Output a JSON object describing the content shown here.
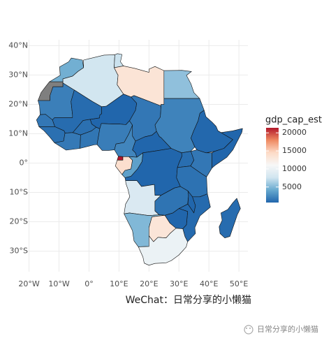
{
  "chart_data": {
    "type": "map",
    "xlim": [
      -22,
      53
    ],
    "ylim": [
      -37,
      42
    ],
    "xticks": [
      {
        "value": -20,
        "label": "20°W"
      },
      {
        "value": -10,
        "label": "10°W"
      },
      {
        "value": 0,
        "label": "0°"
      },
      {
        "value": 10,
        "label": "10°E"
      },
      {
        "value": 20,
        "label": "20°E"
      },
      {
        "value": 30,
        "label": "30°E"
      },
      {
        "value": 40,
        "label": "40°E"
      },
      {
        "value": 50,
        "label": "50°E"
      }
    ],
    "yticks": [
      {
        "value": 40,
        "label": "40°N"
      },
      {
        "value": 30,
        "label": "30°N"
      },
      {
        "value": 20,
        "label": "20°N"
      },
      {
        "value": 10,
        "label": "10°N"
      },
      {
        "value": 0,
        "label": "0°"
      },
      {
        "value": -10,
        "label": "10°S"
      },
      {
        "value": -20,
        "label": "20°S"
      },
      {
        "value": -30,
        "label": "30°S"
      }
    ],
    "grid": true,
    "values": [
      4500,
      2000,
      7700,
      7400,
      13400,
      5500,
      2200,
      1600,
      700,
      1000,
      1600,
      1200,
      1700,
      1200,
      1500,
      1900,
      2300,
      700,
      800,
      600,
      21400,
      14000,
      3700,
      700,
      1100,
      1600,
      1300,
      8400,
      1400,
      700,
      900,
      200,
      5000,
      13300,
      10000,
      1000
    ],
    "legend": {
      "title": "gdp_cap_est",
      "ticks": [
        5000,
        10000,
        15000,
        20000
      ],
      "limits": [
        700,
        21400
      ],
      "colors": [
        "#2166ac",
        "#67a9cf",
        "#d1e5f0",
        "#f7f7f7",
        "#fddbc7",
        "#ef8a62",
        "#b2182b"
      ]
    },
    "caption": "WeChat：日常分享的小懒猫",
    "watermark": "日常分享的小懒猫"
  }
}
